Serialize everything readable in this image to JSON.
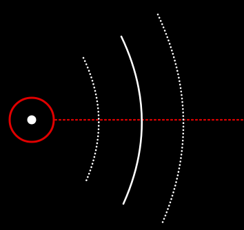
{
  "diagram": {
    "background_color": "#000000",
    "colors": {
      "ring": "#e00000",
      "guide_line": "#e00000",
      "source_dot": "#ffffff",
      "wavefronts": "#ffffff"
    },
    "elements": [
      "source-dot",
      "source-ring",
      "horizontal-guide-line",
      "wavefront-arc-1",
      "wavefront-arc-2",
      "wavefront-arc-3"
    ],
    "wavefront_styles": [
      "dotted",
      "solid",
      "dotted"
    ]
  }
}
